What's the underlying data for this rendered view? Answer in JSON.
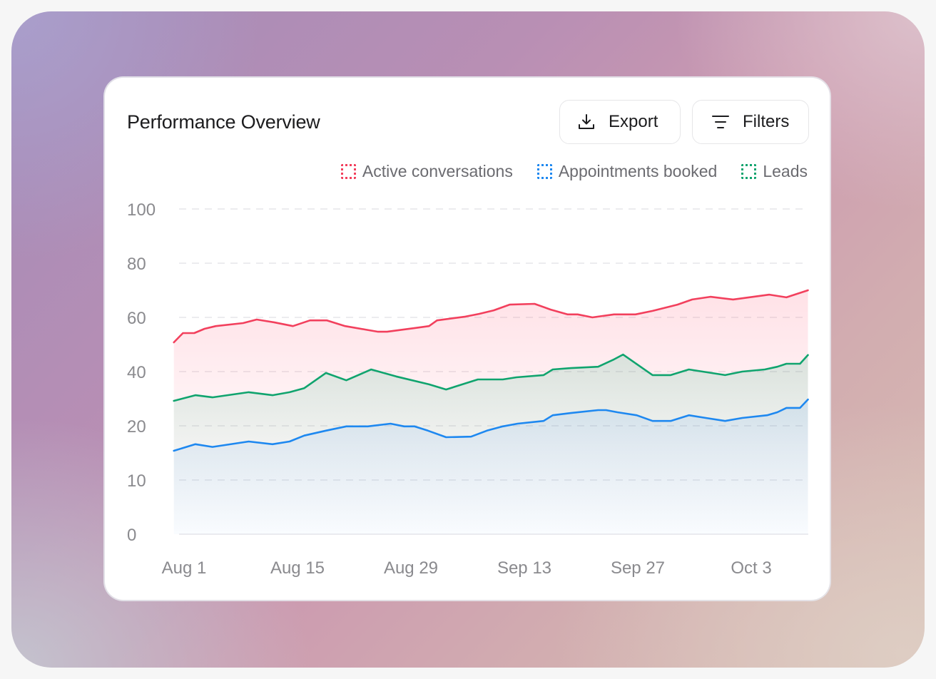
{
  "header": {
    "title": "Performance Overview",
    "export_label": "Export",
    "filters_label": "Filters",
    "export_icon": "download-icon",
    "filters_icon": "filter-lines-icon"
  },
  "colors": {
    "active_conversations": "#f2405d",
    "appointments_booked": "#1e88f0",
    "leads": "#10a46e",
    "grid": "#e6e6ea",
    "tick_text": "#8a8a8e"
  },
  "chart_data": {
    "type": "area",
    "title": "Performance Overview",
    "xlabel": "",
    "ylabel": "",
    "x_ticks": [
      "Aug 1",
      "Aug 15",
      "Aug 29",
      "Sep 13",
      "Sep 27",
      "Oct 3"
    ],
    "y_ticks": [
      0,
      10,
      20,
      40,
      60,
      80,
      100
    ],
    "ylim": [
      0,
      100
    ],
    "grid": true,
    "legend_position": "top-right",
    "x_units_note": "x values are in tick positions (0 = Aug 1, 1 = Aug 15, ... 5 = Oct 3)",
    "series": [
      {
        "key": "active_conversations",
        "name": "Active conversations",
        "points": [
          [
            -0.09,
            50.8
          ],
          [
            -0.01,
            54.2
          ],
          [
            0.09,
            54.2
          ],
          [
            0.18,
            55.8
          ],
          [
            0.28,
            56.8
          ],
          [
            0.52,
            57.9
          ],
          [
            0.64,
            59.2
          ],
          [
            0.79,
            58.2
          ],
          [
            0.96,
            56.8
          ],
          [
            1.11,
            58.9
          ],
          [
            1.26,
            58.9
          ],
          [
            1.42,
            56.8
          ],
          [
            1.6,
            55.5
          ],
          [
            1.71,
            54.7
          ],
          [
            1.79,
            54.7
          ],
          [
            2.04,
            56.1
          ],
          [
            2.16,
            56.8
          ],
          [
            2.23,
            58.9
          ],
          [
            2.48,
            60.3
          ],
          [
            2.6,
            61.3
          ],
          [
            2.73,
            62.6
          ],
          [
            2.87,
            64.7
          ],
          [
            3.09,
            65.0
          ],
          [
            3.23,
            62.9
          ],
          [
            3.38,
            61.1
          ],
          [
            3.47,
            61.1
          ],
          [
            3.6,
            60.0
          ],
          [
            3.79,
            61.1
          ],
          [
            3.98,
            61.1
          ],
          [
            4.13,
            62.4
          ],
          [
            4.35,
            64.7
          ],
          [
            4.48,
            66.6
          ],
          [
            4.64,
            67.6
          ],
          [
            4.84,
            66.6
          ],
          [
            5.16,
            68.4
          ],
          [
            5.31,
            67.4
          ],
          [
            5.5,
            70.0
          ]
        ]
      },
      {
        "key": "leads",
        "name": "Leads",
        "points": [
          [
            -0.09,
            29.2
          ],
          [
            0.1,
            31.3
          ],
          [
            0.25,
            30.5
          ],
          [
            0.57,
            32.4
          ],
          [
            0.78,
            31.3
          ],
          [
            0.93,
            32.4
          ],
          [
            1.06,
            33.9
          ],
          [
            1.25,
            39.5
          ],
          [
            1.43,
            36.8
          ],
          [
            1.65,
            40.8
          ],
          [
            1.87,
            38.2
          ],
          [
            2.16,
            35.3
          ],
          [
            2.31,
            33.4
          ],
          [
            2.59,
            37.1
          ],
          [
            2.81,
            37.1
          ],
          [
            2.93,
            37.9
          ],
          [
            3.17,
            38.7
          ],
          [
            3.25,
            40.8
          ],
          [
            3.41,
            41.3
          ],
          [
            3.65,
            41.8
          ],
          [
            3.79,
            44.5
          ],
          [
            3.87,
            46.3
          ],
          [
            4.13,
            38.7
          ],
          [
            4.29,
            38.7
          ],
          [
            4.45,
            40.8
          ],
          [
            4.77,
            38.7
          ],
          [
            4.92,
            40.0
          ],
          [
            5.12,
            40.8
          ],
          [
            5.23,
            41.8
          ],
          [
            5.31,
            42.9
          ],
          [
            5.43,
            42.9
          ],
          [
            5.5,
            46.1
          ]
        ]
      },
      {
        "key": "appointments_booked",
        "name": "Appointments booked",
        "points": [
          [
            -0.09,
            15.4
          ],
          [
            0.1,
            16.6
          ],
          [
            0.25,
            16.1
          ],
          [
            0.57,
            17.1
          ],
          [
            0.78,
            16.6
          ],
          [
            0.93,
            17.1
          ],
          [
            1.06,
            18.2
          ],
          [
            1.25,
            19.1
          ],
          [
            1.43,
            19.9
          ],
          [
            1.62,
            19.9
          ],
          [
            1.82,
            20.8
          ],
          [
            1.94,
            19.9
          ],
          [
            2.03,
            19.9
          ],
          [
            2.15,
            19.1
          ],
          [
            2.31,
            17.9
          ],
          [
            2.53,
            18.0
          ],
          [
            2.67,
            19.1
          ],
          [
            2.81,
            19.9
          ],
          [
            2.94,
            20.8
          ],
          [
            3.17,
            21.8
          ],
          [
            3.25,
            23.9
          ],
          [
            3.41,
            24.7
          ],
          [
            3.65,
            25.8
          ],
          [
            3.72,
            25.8
          ],
          [
            3.82,
            25.0
          ],
          [
            3.99,
            23.9
          ],
          [
            4.13,
            21.8
          ],
          [
            4.29,
            21.8
          ],
          [
            4.45,
            23.9
          ],
          [
            4.6,
            22.9
          ],
          [
            4.77,
            21.8
          ],
          [
            4.92,
            22.9
          ],
          [
            5.14,
            23.9
          ],
          [
            5.23,
            25.0
          ],
          [
            5.31,
            26.6
          ],
          [
            5.43,
            26.6
          ],
          [
            5.5,
            29.7
          ]
        ]
      }
    ],
    "legend": [
      "Active conversations",
      "Appointments booked",
      "Leads"
    ]
  }
}
